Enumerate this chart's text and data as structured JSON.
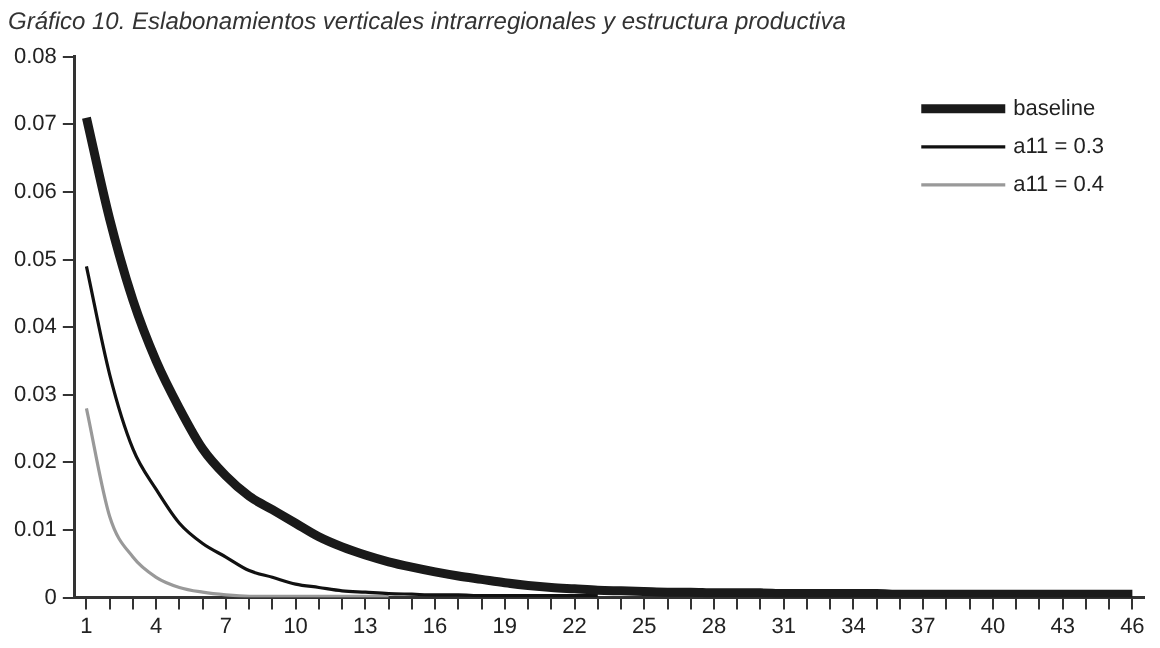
{
  "chart_data": {
    "type": "line",
    "title": "Gráfico 10. Eslabonamientos verticales intrarregionales y estructura productiva",
    "categories": [
      "1",
      null,
      null,
      "4",
      null,
      null,
      "7",
      null,
      null,
      "10",
      null,
      null,
      "13",
      null,
      null,
      "16",
      null,
      null,
      "19",
      null,
      null,
      "22",
      null,
      null,
      "25",
      null,
      null,
      "28",
      null,
      null,
      "31",
      null,
      null,
      "34",
      null,
      null,
      "37",
      null,
      null,
      "40",
      null,
      null,
      "43",
      null,
      null,
      "46"
    ],
    "series": [
      {
        "name": "baseline",
        "color": "#1a1a1a",
        "values": [
          0.071,
          0.056,
          0.044,
          0.035,
          0.028,
          0.022,
          0.018,
          0.015,
          0.013,
          0.011,
          0.009,
          0.0075,
          0.0063,
          0.0053,
          0.0045,
          0.0038,
          0.0032,
          0.0027,
          0.0022,
          0.0018,
          0.0015,
          0.0013,
          0.0011,
          0.001,
          0.0009,
          0.0008,
          0.0008,
          0.0007,
          0.0007,
          0.0007,
          0.0006,
          0.0006,
          0.0006,
          0.0006,
          0.0006,
          0.0005,
          0.0005,
          0.0005,
          0.0005,
          0.0005,
          0.0005,
          0.0005,
          0.0005,
          0.0005,
          0.0005,
          0.0005
        ]
      },
      {
        "name": "a11 = 0.3",
        "color": "#111111",
        "values": [
          0.049,
          0.033,
          0.022,
          0.016,
          0.011,
          0.008,
          0.006,
          0.004,
          0.003,
          0.002,
          0.0015,
          0.001,
          0.0008,
          0.0006,
          0.0005,
          0.0004,
          0.0004,
          0.0003,
          0.0003,
          0.0003,
          0.0003,
          0.0003,
          0.0003,
          null,
          null,
          null,
          null,
          null,
          null,
          null,
          null,
          null,
          null,
          null,
          null,
          null,
          null,
          null,
          null,
          null,
          null,
          null,
          null,
          null,
          null,
          null
        ]
      },
      {
        "name": "a11 = 0.4",
        "color": "#999999",
        "values": [
          0.028,
          0.012,
          0.006,
          0.003,
          0.0015,
          0.0008,
          0.0004,
          0.0002,
          0.0002,
          0.0002,
          0.0002,
          0.0002,
          0.0002,
          0.0002,
          null,
          null,
          null,
          null,
          null,
          null,
          null,
          null,
          null,
          null,
          null,
          null,
          null,
          null,
          null,
          null,
          null,
          null,
          null,
          null,
          null,
          null,
          null,
          null,
          null,
          null,
          null,
          null,
          null,
          null,
          null,
          null
        ]
      }
    ],
    "ylim": [
      0,
      0.08
    ],
    "yticks": [
      0,
      0.01,
      0.02,
      0.03,
      0.04,
      0.05,
      0.06,
      0.07,
      0.08
    ],
    "grid": false,
    "legend": "top right",
    "marker": "none",
    "line_style": "solid"
  }
}
